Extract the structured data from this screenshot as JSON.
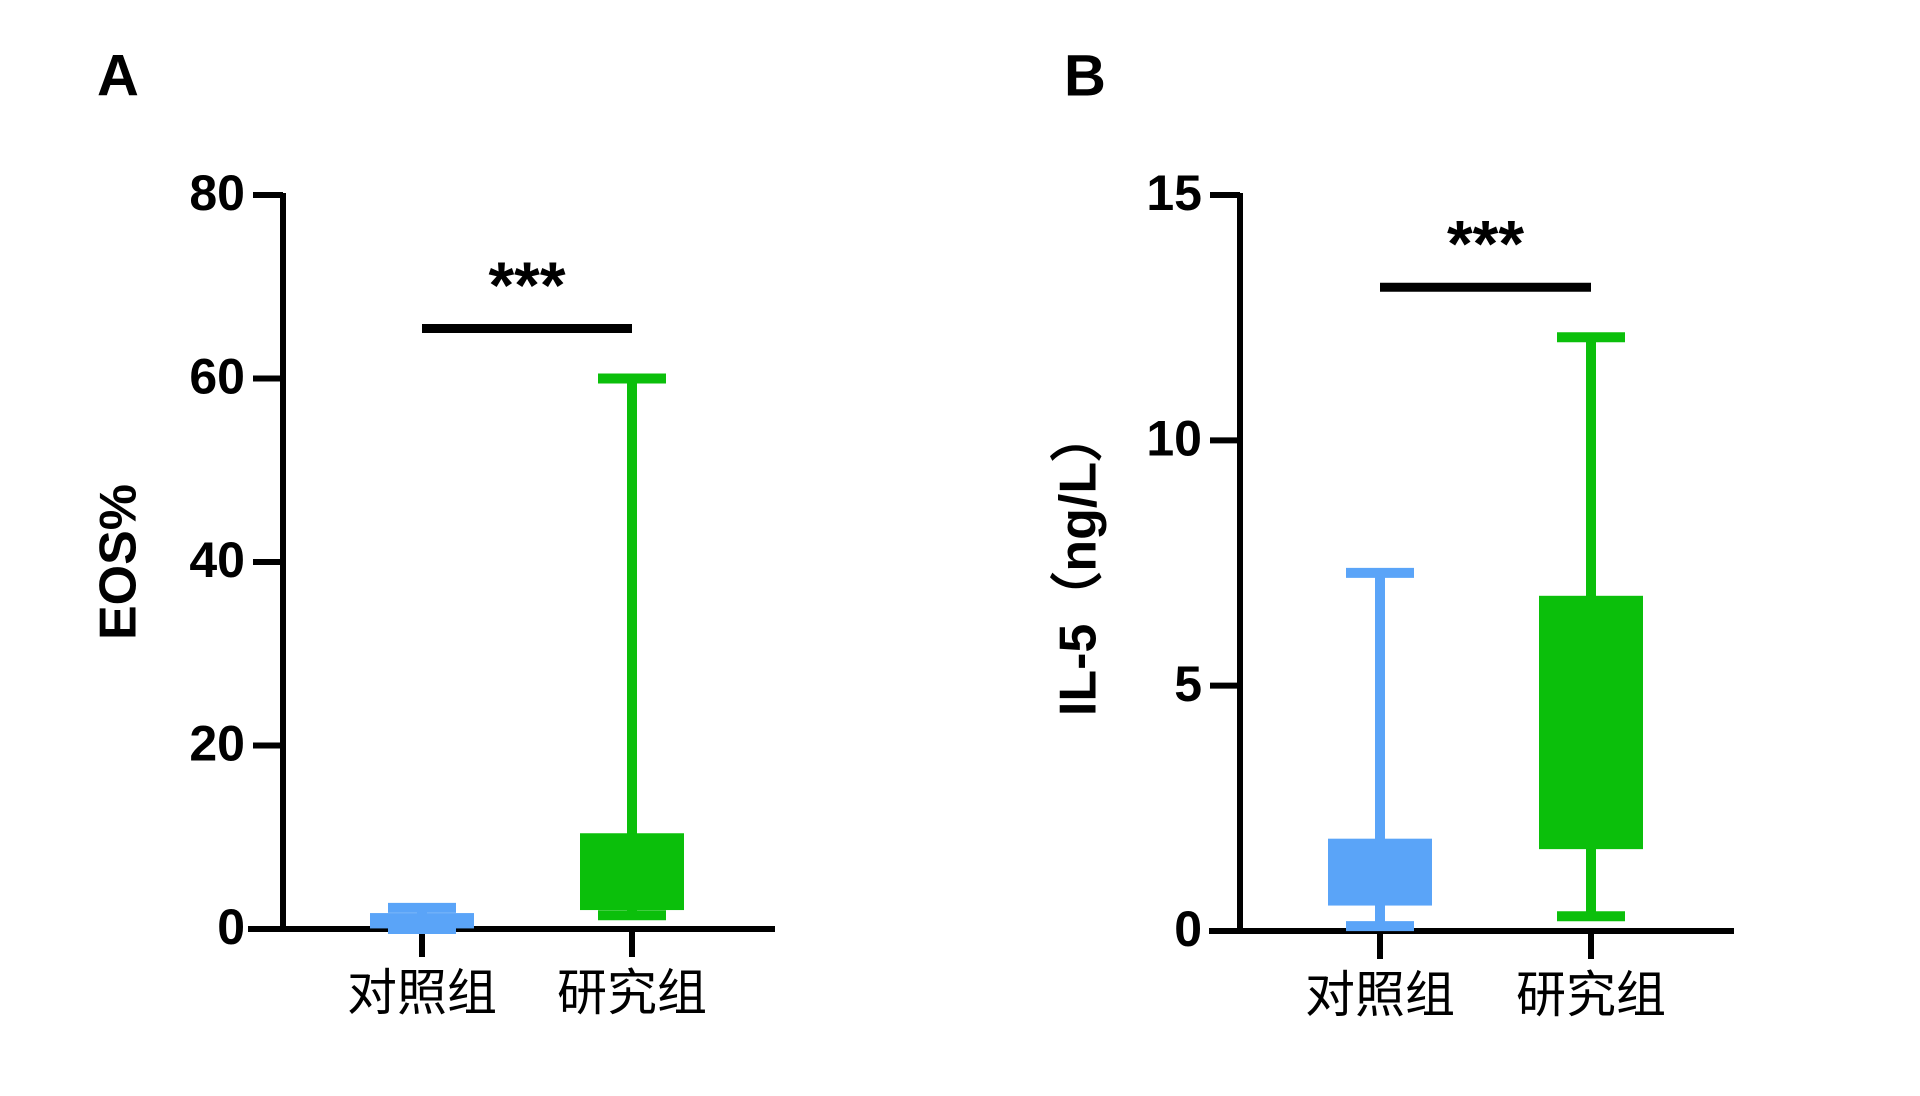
{
  "chart_data": [
    {
      "type": "box",
      "title": "A",
      "y_label": "EOS%",
      "categories": [
        "对照组",
        "研究组"
      ],
      "colors": [
        "#5aa4f8",
        "#0bbf0b"
      ],
      "min": [
        0,
        1.5
      ],
      "q1": [
        0.5,
        2.5
      ],
      "q3": [
        1.3,
        10
      ],
      "max": [
        2.3,
        60
      ],
      "ylim": [
        0,
        80
      ],
      "yticks": [
        0,
        20,
        40,
        60,
        80
      ],
      "significance": "***"
    },
    {
      "type": "box",
      "title": "B",
      "y_label": "IL-5（ng/L）",
      "categories": [
        "对照组",
        "研究组"
      ],
      "colors": [
        "#5aa4f8",
        "#0bbf0b"
      ],
      "min": [
        0.1,
        0.3
      ],
      "q1": [
        0.6,
        1.75
      ],
      "q3": [
        1.8,
        6.75
      ],
      "max": [
        7.3,
        12.1
      ],
      "ylim": [
        0,
        15
      ],
      "yticks": [
        0,
        5,
        10,
        15
      ],
      "significance": "***"
    }
  ]
}
